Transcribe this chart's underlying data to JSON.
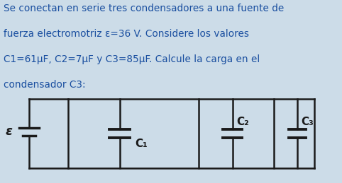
{
  "bg_color": "#ccdce8",
  "circuit_bg_color": "#d8e8d8",
  "text_color": "#1a4fa0",
  "circuit_color": "#1a1a1a",
  "title_lines": [
    "Se conectan en serie tres condensadores a una fuente de",
    "fuerza electromotriz ε=36 V. Considere los valores",
    "C1=61μF, C2=7μF y C3=85μF. Calcule la carga en el",
    "condensador C3:"
  ],
  "text_fontsize": 9.8,
  "epsilon_label": "ε",
  "c1_label": "C₁",
  "c2_label": "C₂",
  "c3_label": "C₃"
}
